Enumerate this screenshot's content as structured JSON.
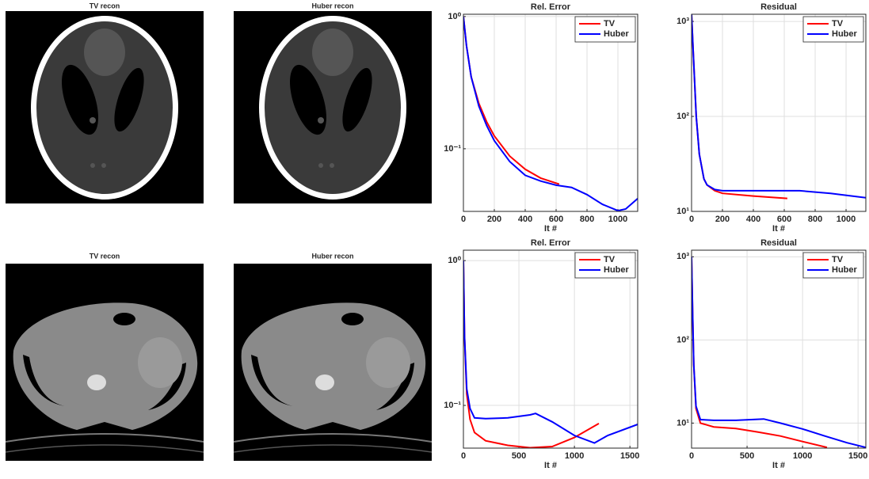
{
  "image_titles": [
    "TV recon",
    "Huber recon",
    "TV recon",
    "Huber recon"
  ],
  "chart_data": [
    {
      "type": "line",
      "title": "Rel. Error",
      "xlabel": "It #",
      "log_y": true,
      "grid": true,
      "legend": "upper right",
      "xlim": [
        0,
        1128
      ],
      "ylim": [
        0.0336,
        1.04
      ],
      "xticks": [
        0,
        200,
        400,
        600,
        800,
        1000
      ],
      "yticks": [
        {
          "value": 0.1,
          "label": "10⁻¹"
        },
        {
          "value": 1,
          "label": "10⁰"
        }
      ],
      "series": [
        {
          "name": "TV",
          "color": "#ff0000",
          "x": [
            0,
            20,
            50,
            100,
            150,
            200,
            300,
            400,
            500,
            600,
            620
          ],
          "values": [
            1.0,
            0.6,
            0.35,
            0.22,
            0.16,
            0.125,
            0.088,
            0.07,
            0.06,
            0.055,
            0.054
          ]
        },
        {
          "name": "Huber",
          "color": "#0000ff",
          "x": [
            0,
            20,
            50,
            100,
            150,
            200,
            300,
            400,
            500,
            600,
            700,
            800,
            900,
            1000,
            1050,
            1128
          ],
          "values": [
            1.0,
            0.6,
            0.35,
            0.21,
            0.15,
            0.115,
            0.08,
            0.063,
            0.057,
            0.053,
            0.051,
            0.045,
            0.038,
            0.034,
            0.035,
            0.042
          ]
        }
      ]
    },
    {
      "type": "line",
      "title": "Residual",
      "xlabel": "It #",
      "log_y": true,
      "grid": true,
      "legend": "upper right",
      "xlim": [
        0,
        1128
      ],
      "ylim": [
        10,
        1190
      ],
      "xticks": [
        0,
        200,
        400,
        600,
        800,
        1000
      ],
      "yticks": [
        {
          "value": 10,
          "label": "10¹"
        },
        {
          "value": 100,
          "label": "10²"
        },
        {
          "value": 1000,
          "label": "10³"
        }
      ],
      "series": [
        {
          "name": "TV",
          "color": "#ff0000",
          "x": [
            0,
            10,
            30,
            50,
            80,
            100,
            150,
            200,
            400,
            620
          ],
          "values": [
            1190,
            500,
            100,
            40,
            22,
            19,
            16.5,
            15.5,
            14.5,
            13.7
          ]
        },
        {
          "name": "Huber",
          "color": "#0000ff",
          "x": [
            0,
            10,
            30,
            50,
            80,
            100,
            150,
            200,
            400,
            700,
            900,
            1128
          ],
          "values": [
            1190,
            500,
            100,
            40,
            22,
            19,
            17,
            16.5,
            16.5,
            16.5,
            15.5,
            13.9
          ]
        }
      ]
    },
    {
      "type": "line",
      "title": "Rel. Error",
      "xlabel": "It #",
      "log_y": true,
      "grid": true,
      "legend": "upper right",
      "xlim": [
        0,
        1570
      ],
      "ylim": [
        0.0507,
        1.18
      ],
      "xticks": [
        0,
        500,
        1000,
        1500
      ],
      "yticks": [
        {
          "value": 0.1,
          "label": "10⁻¹"
        },
        {
          "value": 1,
          "label": "10⁰"
        }
      ],
      "series": [
        {
          "name": "TV",
          "color": "#ff0000",
          "x": [
            0,
            10,
            30,
            60,
            100,
            200,
            400,
            600,
            800,
            1000,
            1220
          ],
          "values": [
            1.0,
            0.3,
            0.12,
            0.08,
            0.065,
            0.057,
            0.053,
            0.051,
            0.052,
            0.06,
            0.075
          ]
        },
        {
          "name": "Huber",
          "color": "#0000ff",
          "x": [
            0,
            10,
            30,
            60,
            100,
            200,
            400,
            600,
            650,
            800,
            1000,
            1180,
            1300,
            1570
          ],
          "values": [
            1.0,
            0.3,
            0.13,
            0.095,
            0.082,
            0.081,
            0.082,
            0.086,
            0.088,
            0.077,
            0.062,
            0.055,
            0.062,
            0.074
          ]
        }
      ]
    },
    {
      "type": "line",
      "title": "Residual",
      "xlabel": "It #",
      "log_y": true,
      "grid": true,
      "legend": "upper right",
      "xlim": [
        0,
        1570
      ],
      "ylim": [
        5,
        1200
      ],
      "xticks": [
        0,
        500,
        1000,
        1500
      ],
      "yticks": [
        {
          "value": 10,
          "label": "10¹"
        },
        {
          "value": 100,
          "label": "10²"
        },
        {
          "value": 1000,
          "label": "10³"
        }
      ],
      "series": [
        {
          "name": "TV",
          "color": "#ff0000",
          "x": [
            0,
            10,
            20,
            40,
            80,
            200,
            400,
            600,
            800,
            1000,
            1220
          ],
          "values": [
            1000,
            200,
            50,
            15,
            10,
            9,
            8.6,
            7.8,
            7.0,
            6.0,
            5.1
          ]
        },
        {
          "name": "Huber",
          "color": "#0000ff",
          "x": [
            0,
            10,
            20,
            40,
            80,
            200,
            400,
            650,
            800,
            1000,
            1200,
            1400,
            1570
          ],
          "values": [
            1000,
            200,
            50,
            16,
            11,
            10.8,
            10.8,
            11.2,
            10,
            8.5,
            7,
            5.8,
            5.1
          ]
        }
      ]
    }
  ]
}
